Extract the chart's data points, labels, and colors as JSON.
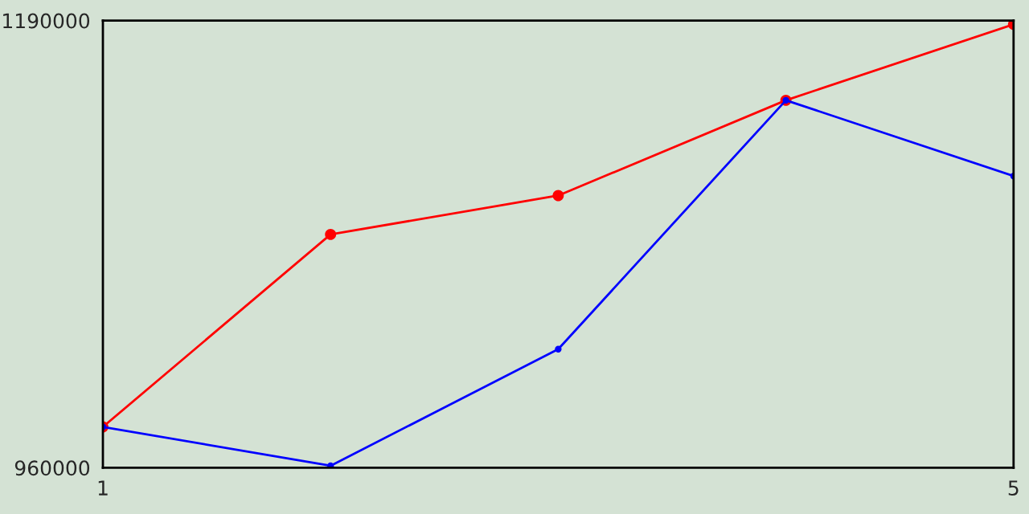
{
  "chart_data": {
    "type": "line",
    "x": [
      1,
      2,
      3,
      4,
      5
    ],
    "series": [
      {
        "color": "#ff0000",
        "values": [
          981000,
          1080000,
          1100000,
          1149000,
          1188000
        ]
      },
      {
        "color": "#0000ff",
        "values": [
          981000,
          961000,
          1021000,
          1149000,
          1110000
        ]
      }
    ],
    "xlim": [
      1,
      5
    ],
    "xticks": [
      1,
      5
    ],
    "ylim": [
      960000,
      1190000
    ],
    "yticks": [
      960000,
      1190000
    ],
    "marker": "circle",
    "line_style": "solid"
  }
}
